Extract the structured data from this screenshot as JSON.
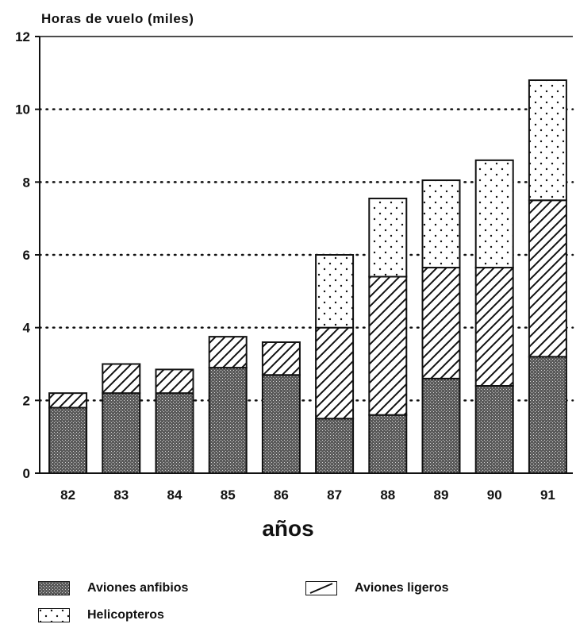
{
  "chart_data": {
    "type": "bar",
    "stacked": true,
    "ylabel": "Horas de vuelo (miles)",
    "xlabel": "años",
    "ylim": [
      0,
      12
    ],
    "yticks": [
      0,
      2,
      4,
      6,
      8,
      10,
      12
    ],
    "ytick_labels": [
      "0",
      "2",
      "4",
      "6",
      "8",
      "10",
      "12"
    ],
    "grid": "dotted horizontal",
    "categories": [
      "82",
      "83",
      "84",
      "85",
      "86",
      "87",
      "88",
      "89",
      "90",
      "91"
    ],
    "series": [
      {
        "name": "Aviones anfibios",
        "pattern": "crosshatch",
        "values": [
          1.8,
          2.2,
          2.2,
          2.9,
          2.7,
          1.5,
          1.6,
          2.6,
          2.4,
          3.2
        ]
      },
      {
        "name": "Aviones ligeros",
        "pattern": "diagonal",
        "values": [
          0.4,
          0.8,
          0.65,
          0.85,
          0.9,
          2.5,
          3.8,
          3.05,
          3.25,
          4.3
        ]
      },
      {
        "name": "Helicopteros",
        "pattern": "dots",
        "values": [
          0,
          0,
          0,
          0,
          0,
          2.0,
          2.15,
          2.4,
          2.95,
          3.3
        ]
      }
    ],
    "legend": {
      "placement": "bottom"
    }
  },
  "legend": {
    "item1": "Aviones anfibios",
    "item2": "Aviones ligeros",
    "item3": "Helicopteros"
  }
}
